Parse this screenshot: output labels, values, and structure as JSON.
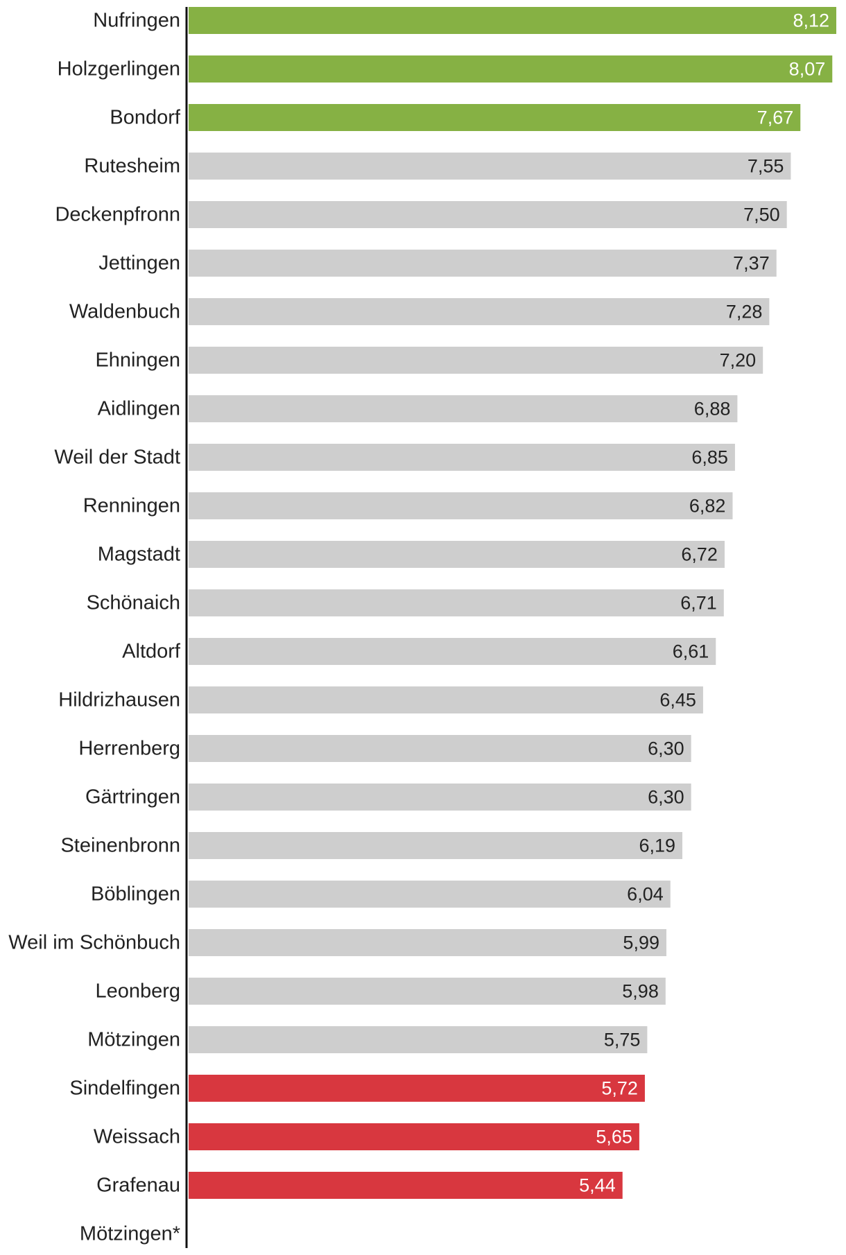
{
  "chart_data": {
    "type": "bar",
    "orientation": "horizontal",
    "title": "",
    "xlabel": "",
    "ylabel": "",
    "xlim": [
      0,
      8.12
    ],
    "grid": false,
    "legend": "none",
    "colors": {
      "high": "#86b144",
      "neutral": "#cecece",
      "low": "#d8373f",
      "axis": "#111111"
    },
    "categories": [
      "Nufringen",
      "Holzgerlingen",
      "Bondorf",
      "Rutesheim",
      "Deckenpfronn",
      "Jettingen",
      "Waldenbuch",
      "Ehningen",
      "Aidlingen",
      "Weil der Stadt",
      "Renningen",
      "Magstadt",
      "Schönaich",
      "Altdorf",
      "Hildrizhausen",
      "Herrenberg",
      "Gärtringen",
      "Steinenbronn",
      "Böblingen",
      "Weil im Schönbuch",
      "Leonberg",
      "Mötzingen",
      "Sindelfingen",
      "Weissach",
      "Grafenau",
      "Mötzingen*"
    ],
    "values": [
      8.12,
      8.07,
      7.67,
      7.55,
      7.5,
      7.37,
      7.28,
      7.2,
      6.88,
      6.85,
      6.82,
      6.72,
      6.71,
      6.61,
      6.45,
      6.3,
      6.3,
      6.19,
      6.04,
      5.99,
      5.98,
      5.75,
      5.72,
      5.65,
      5.44,
      null
    ],
    "value_labels": [
      "8,12",
      "8,07",
      "7,67",
      "7,55",
      "7,50",
      "7,37",
      "7,28",
      "7,20",
      "6,88",
      "6,85",
      "6,82",
      "6,72",
      "6,71",
      "6,61",
      "6,45",
      "6,30",
      "6,30",
      "6,19",
      "6,04",
      "5,99",
      "5,98",
      "5,75",
      "5,72",
      "5,65",
      "5,44",
      ""
    ],
    "groups": [
      "high",
      "high",
      "high",
      "neutral",
      "neutral",
      "neutral",
      "neutral",
      "neutral",
      "neutral",
      "neutral",
      "neutral",
      "neutral",
      "neutral",
      "neutral",
      "neutral",
      "neutral",
      "neutral",
      "neutral",
      "neutral",
      "neutral",
      "neutral",
      "neutral",
      "low",
      "low",
      "low",
      "none"
    ]
  }
}
